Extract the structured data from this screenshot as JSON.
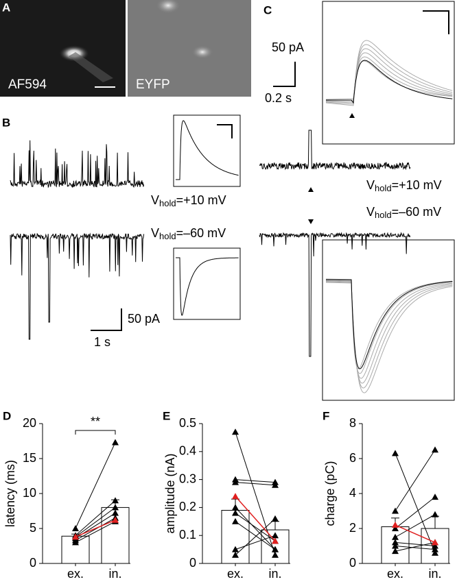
{
  "panels": {
    "A": {
      "label": "A",
      "images": [
        "AF594",
        "EYFP"
      ]
    },
    "B": {
      "label": "B",
      "scale_y": "50 pA",
      "scale_x": "1 s",
      "vhold_top": {
        "v": "V",
        "sub": "hold",
        "rest": "=+10 mV"
      },
      "vhold_bottom": {
        "v": "V",
        "sub": "hold",
        "rest": "=–60 mV"
      }
    },
    "C": {
      "label": "C",
      "scale_y": "50 pA",
      "scale_x": "0.2 s",
      "vhold_top": {
        "v": "V",
        "sub": "hold",
        "rest": "=+10 mV"
      },
      "vhold_bottom": {
        "v": "V",
        "sub": "hold",
        "rest": "=–60 mV"
      }
    }
  },
  "chart_data": [
    {
      "type": "bar",
      "label": "D",
      "ylabel": "latency (ms)",
      "categories": [
        "ex.",
        "in."
      ],
      "values": [
        3.9,
        8.0
      ],
      "errors": [
        0.3,
        1.1
      ],
      "bar_color": "#ffffff",
      "points": [
        [
          5.0,
          17.3
        ],
        [
          4.0,
          9.0
        ],
        [
          3.8,
          8.0
        ],
        [
          3.6,
          7.2
        ],
        [
          3.3,
          6.5
        ],
        [
          3.0,
          6.0
        ]
      ],
      "highlight": [
        3.8,
        6.2
      ],
      "highlight_color": "#e02020",
      "point_color": "#000000",
      "annotation": "**",
      "ylim": [
        0,
        20
      ],
      "yticks": [
        0,
        5,
        10,
        15,
        20
      ]
    },
    {
      "type": "bar",
      "label": "E",
      "ylabel": "amplitude (nA)",
      "categories": [
        "ex.",
        "in."
      ],
      "values": [
        0.19,
        0.12
      ],
      "errors": [
        0.04,
        0.03
      ],
      "bar_color": "#ffffff",
      "points": [
        [
          0.47,
          0.03
        ],
        [
          0.3,
          0.29
        ],
        [
          0.29,
          0.28
        ],
        [
          0.2,
          0.05
        ],
        [
          0.18,
          0.08
        ],
        [
          0.15,
          0.05
        ],
        [
          0.05,
          0.1
        ],
        [
          0.03,
          0.16
        ]
      ],
      "highlight": [
        0.24,
        0.08
      ],
      "highlight_color": "#e02020",
      "point_color": "#000000",
      "ylim": [
        0,
        0.5
      ],
      "yticks": [
        0,
        0.1,
        0.2,
        0.3,
        0.4,
        0.5
      ]
    },
    {
      "type": "bar",
      "label": "F",
      "ylabel": "charge (pC)",
      "categories": [
        "ex.",
        "in."
      ],
      "values": [
        2.1,
        2.0
      ],
      "errors": [
        0.5,
        0.7
      ],
      "bar_color": "#ffffff",
      "points": [
        [
          6.3,
          0.6
        ],
        [
          3.0,
          6.5
        ],
        [
          2.0,
          3.8
        ],
        [
          1.5,
          2.8
        ],
        [
          1.2,
          1.0
        ],
        [
          1.0,
          0.8
        ],
        [
          0.7,
          1.2
        ]
      ],
      "highlight": [
        2.2,
        1.2
      ],
      "highlight_color": "#e02020",
      "point_color": "#000000",
      "ylim": [
        0,
        8
      ],
      "yticks": [
        0,
        2,
        4,
        6,
        8
      ]
    }
  ]
}
